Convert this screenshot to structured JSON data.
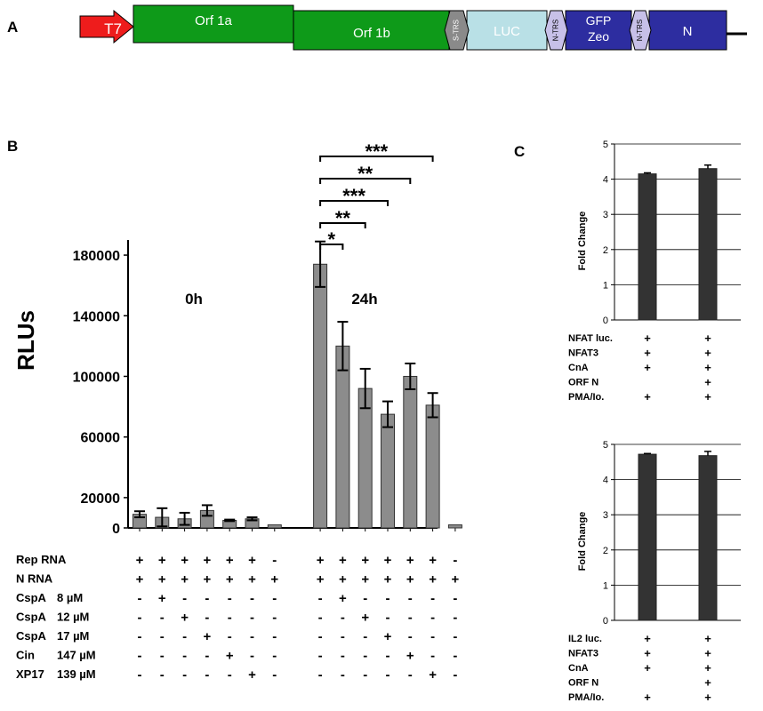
{
  "panel_labels": {
    "a": "A",
    "b": "B",
    "c": "C"
  },
  "construct": {
    "segments": [
      {
        "id": "t7",
        "label": "T7",
        "color": "#ee1c1c",
        "shape": "arrow"
      },
      {
        "id": "orf1a",
        "label": "Orf 1a",
        "color": "#0e9a19",
        "shape": "box"
      },
      {
        "id": "orf1b",
        "label": "Orf 1b",
        "color": "#0e9a19",
        "shape": "box"
      },
      {
        "id": "strs1",
        "label": "S-TRS",
        "color": "#8a8a8a",
        "shape": "hex"
      },
      {
        "id": "luc",
        "label": "LUC",
        "color": "#b9e0e6",
        "shape": "box"
      },
      {
        "id": "ntrs1",
        "label": "N-TRS",
        "color": "#c7c0e8",
        "shape": "hex"
      },
      {
        "id": "gfp",
        "label": "GFP",
        "label2": "Zeo",
        "color": "#2d2da0",
        "shape": "box"
      },
      {
        "id": "ntrs2",
        "label": "N-TRS",
        "color": "#c7c0e8",
        "shape": "hex"
      },
      {
        "id": "n",
        "label": "N",
        "color": "#2d2da0",
        "shape": "box"
      }
    ]
  },
  "chart_data": [
    {
      "id": "panel-b",
      "type": "bar",
      "ylabel": "RLUs",
      "ylim": [
        0,
        190000
      ],
      "yticks": [
        0,
        20000,
        60000,
        100000,
        140000,
        180000
      ],
      "ytick_labels": [
        "0",
        "20000",
        "60000",
        "100000",
        "140000",
        "180000"
      ],
      "group_labels": [
        "0h",
        "24h"
      ],
      "values": [
        9000,
        7000,
        6000,
        11500,
        5000,
        6000,
        2000,
        174000,
        120000,
        92000,
        75000,
        100000,
        81000,
        2000
      ],
      "errors": [
        2000,
        6000,
        4000,
        3500,
        500,
        1000,
        0,
        15000,
        16000,
        13000,
        8500,
        8500,
        8000,
        0
      ],
      "bar_color": "#8c8c8c",
      "significance": [
        {
          "from": 7,
          "to": 8,
          "label": "*"
        },
        {
          "from": 7,
          "to": 9,
          "label": "**"
        },
        {
          "from": 7,
          "to": 10,
          "label": "***"
        },
        {
          "from": 7,
          "to": 11,
          "label": "**"
        },
        {
          "from": 7,
          "to": 12,
          "label": "***"
        }
      ],
      "condition_rows": [
        {
          "label": "Rep RNA",
          "conc": "",
          "signs": [
            "+",
            "+",
            "+",
            "+",
            "+",
            "+",
            "-",
            "+",
            "+",
            "+",
            "+",
            "+",
            "+",
            "-"
          ]
        },
        {
          "label": "N RNA",
          "conc": "",
          "signs": [
            "+",
            "+",
            "+",
            "+",
            "+",
            "+",
            "+",
            "+",
            "+",
            "+",
            "+",
            "+",
            "+",
            "+"
          ]
        },
        {
          "label": "CspA",
          "conc": "8 µM",
          "signs": [
            "-",
            "+",
            "-",
            "-",
            "-",
            "-",
            "-",
            "-",
            "+",
            "-",
            "-",
            "-",
            "-",
            "-"
          ]
        },
        {
          "label": "CspA",
          "conc": "12 µM",
          "signs": [
            "-",
            "-",
            "+",
            "-",
            "-",
            "-",
            "-",
            "-",
            "-",
            "+",
            "-",
            "-",
            "-",
            "-"
          ]
        },
        {
          "label": "CspA",
          "conc": "17 µM",
          "signs": [
            "-",
            "-",
            "-",
            "+",
            "-",
            "-",
            "-",
            "-",
            "-",
            "-",
            "+",
            "-",
            "-",
            "-"
          ]
        },
        {
          "label": "Cin",
          "conc": "147 µM",
          "signs": [
            "-",
            "-",
            "-",
            "-",
            "+",
            "-",
            "-",
            "-",
            "-",
            "-",
            "-",
            "+",
            "-",
            "-"
          ]
        },
        {
          "label": "XP17",
          "conc": "139 µM",
          "signs": [
            "-",
            "-",
            "-",
            "-",
            "-",
            "+",
            "-",
            "-",
            "-",
            "-",
            "-",
            "-",
            "+",
            "-"
          ]
        }
      ]
    },
    {
      "id": "panel-c-top",
      "type": "bar",
      "ylabel": "Fold Change",
      "ylim": [
        0,
        5
      ],
      "yticks": [
        0,
        1,
        2,
        3,
        4,
        5
      ],
      "grid": true,
      "values": [
        4.15,
        4.3
      ],
      "errors": [
        0.03,
        0.1
      ],
      "bar_color": "#333333",
      "condition_rows": [
        {
          "label": "NFAT luc.",
          "signs": [
            "+",
            "+"
          ]
        },
        {
          "label": "NFAT3",
          "signs": [
            "+",
            "+"
          ]
        },
        {
          "label": "CnA",
          "signs": [
            "+",
            "+"
          ]
        },
        {
          "label": "ORF N",
          "signs": [
            "",
            "+"
          ]
        },
        {
          "label": "PMA/Io.",
          "signs": [
            "+",
            "+"
          ]
        }
      ]
    },
    {
      "id": "panel-c-bottom",
      "type": "bar",
      "ylabel": "Fold Change",
      "ylim": [
        0,
        5
      ],
      "yticks": [
        0,
        1,
        2,
        3,
        4,
        5
      ],
      "grid": true,
      "values": [
        4.72,
        4.68
      ],
      "errors": [
        0.02,
        0.12
      ],
      "bar_color": "#333333",
      "condition_rows": [
        {
          "label": "IL2 luc.",
          "signs": [
            "+",
            "+"
          ]
        },
        {
          "label": "NFAT3",
          "signs": [
            "+",
            "+"
          ]
        },
        {
          "label": "CnA",
          "signs": [
            "+",
            "+"
          ]
        },
        {
          "label": "ORF N",
          "signs": [
            "",
            "+"
          ]
        },
        {
          "label": "PMA/Io.",
          "signs": [
            "+",
            "+"
          ]
        }
      ]
    }
  ]
}
